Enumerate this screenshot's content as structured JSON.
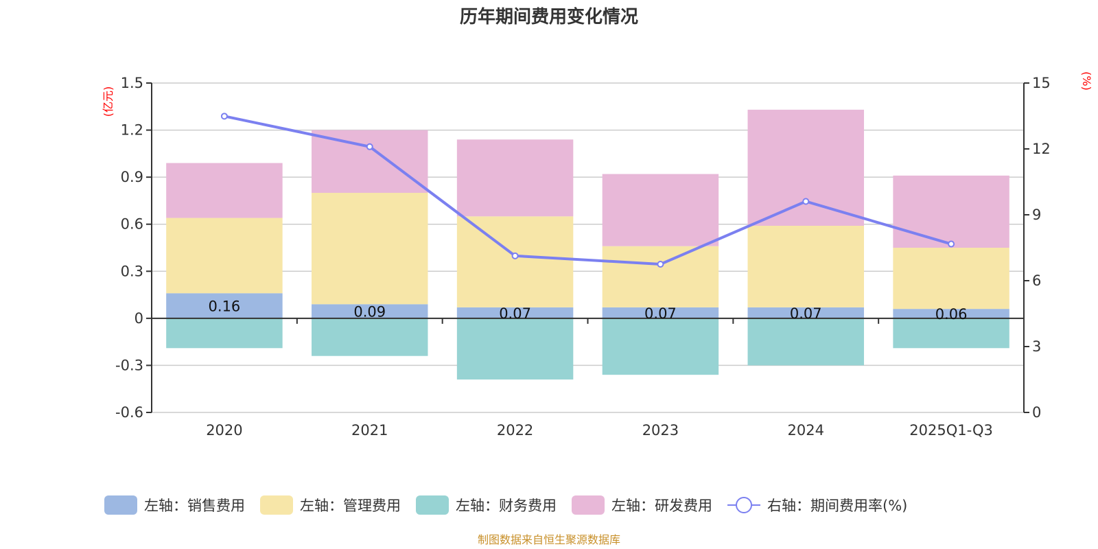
{
  "chart_data": {
    "type": "bar",
    "title": "历年期间费用变化情况",
    "categories": [
      "2020",
      "2021",
      "2022",
      "2023",
      "2024",
      "2025Q1-Q3"
    ],
    "left_axis": {
      "unit_label": "(亿元)",
      "ylim": [
        -0.6,
        1.5
      ],
      "ticks": [
        -0.6,
        -0.3,
        0,
        0.3,
        0.6,
        0.9,
        1.2,
        1.5
      ],
      "tick_labels": [
        "-0.6",
        "-0.3",
        "0",
        "0.3",
        "0.6",
        "0.9",
        "1.2",
        "1.5"
      ]
    },
    "right_axis": {
      "unit_label": "(%)",
      "ylim": [
        0,
        15
      ],
      "ticks": [
        0,
        3,
        6,
        9,
        12,
        15
      ],
      "tick_labels": [
        "0",
        "3",
        "6",
        "9",
        "12",
        "15"
      ]
    },
    "grid": true,
    "stacked": true,
    "series": [
      {
        "name": "左轴：销售费用",
        "axis": "left",
        "kind": "bar",
        "color": "#9db8e2",
        "values": [
          0.16,
          0.09,
          0.07,
          0.07,
          0.07,
          0.06
        ],
        "data_labels": [
          "0.16",
          "0.09",
          "0.07",
          "0.07",
          "0.07",
          "0.06"
        ]
      },
      {
        "name": "左轴：管理费用",
        "axis": "left",
        "kind": "bar",
        "color": "#f7e6a8",
        "values": [
          0.48,
          0.71,
          0.58,
          0.39,
          0.52,
          0.39
        ]
      },
      {
        "name": "左轴：财务费用",
        "axis": "left",
        "kind": "bar",
        "color": "#97d3d3",
        "values": [
          -0.19,
          -0.24,
          -0.39,
          -0.36,
          -0.3,
          -0.19
        ]
      },
      {
        "name": "左轴：研发费用",
        "axis": "left",
        "kind": "bar",
        "color": "#e8b8d8",
        "values": [
          0.35,
          0.4,
          0.49,
          0.46,
          0.74,
          0.46
        ]
      },
      {
        "name": "右轴：期间费用率(%)",
        "axis": "right",
        "kind": "line",
        "color": "#7b80f0",
        "values": [
          13.49,
          12.1,
          7.13,
          6.75,
          9.61,
          7.67
        ]
      }
    ],
    "legend_position": "bottom",
    "source_note": "制图数据来自恒生聚源数据库"
  }
}
